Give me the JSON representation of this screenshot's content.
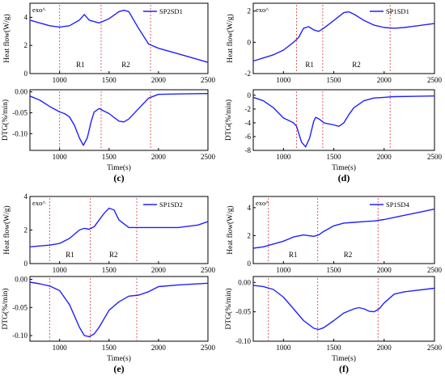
{
  "figure": {
    "time_label": "Time(s)",
    "heat_ylabel": "Heat flow(W/g)",
    "dtg_ylabel": "DTG(%/min)",
    "exo_label": "exo^"
  },
  "chart_data": [
    {
      "panel": "c",
      "label": "(c)",
      "sample": "SP2SD1",
      "type": "line",
      "heat": {
        "ylim": [
          0,
          5
        ],
        "yticks": [
          0,
          2,
          4
        ],
        "x": [
          700,
          800,
          900,
          1000,
          1100,
          1200,
          1250,
          1300,
          1400,
          1500,
          1600,
          1650,
          1700,
          1800,
          1900,
          2000,
          2200,
          2500
        ],
        "y": [
          3.8,
          3.6,
          3.4,
          3.3,
          3.4,
          3.8,
          4.2,
          3.8,
          3.6,
          3.9,
          4.4,
          4.5,
          4.4,
          3.2,
          2.1,
          1.8,
          1.4,
          0.8
        ]
      },
      "dtg": {
        "ylim": [
          -0.14,
          0.005
        ],
        "yticks": [
          0.0,
          -0.05,
          -0.1
        ],
        "x": [
          700,
          800,
          900,
          1000,
          1050,
          1100,
          1150,
          1200,
          1240,
          1280,
          1320,
          1350,
          1400,
          1500,
          1600,
          1650,
          1700,
          1800,
          1900,
          2000,
          2200,
          2500
        ],
        "y": [
          -0.01,
          -0.02,
          -0.035,
          -0.048,
          -0.052,
          -0.06,
          -0.08,
          -0.11,
          -0.128,
          -0.11,
          -0.07,
          -0.048,
          -0.04,
          -0.052,
          -0.07,
          -0.072,
          -0.065,
          -0.04,
          -0.015,
          -0.006,
          -0.005,
          -0.004
        ]
      },
      "markers": [
        1000,
        1420,
        1920
      ],
      "regions": [
        "R1",
        "R2"
      ],
      "xticks": [
        1000,
        1500,
        2000,
        2500
      ]
    },
    {
      "panel": "d",
      "label": "(d)",
      "sample": "SP1SD1",
      "type": "line",
      "heat": {
        "ylim": [
          -2,
          2.5
        ],
        "yticks": [
          -2,
          0,
          2
        ],
        "x": [
          700,
          800,
          900,
          1000,
          1100,
          1150,
          1200,
          1250,
          1300,
          1350,
          1400,
          1500,
          1600,
          1650,
          1700,
          1800,
          1900,
          2000,
          2100,
          2200,
          2500
        ],
        "y": [
          -1.2,
          -1.0,
          -0.8,
          -0.5,
          0.0,
          0.3,
          0.9,
          1.0,
          0.8,
          0.7,
          0.9,
          1.4,
          1.9,
          1.95,
          1.8,
          1.4,
          1.1,
          0.95,
          0.9,
          0.95,
          1.2
        ]
      },
      "dtg": {
        "ylim": [
          -8,
          0.8
        ],
        "yticks": [
          0,
          -2,
          -4,
          -6,
          -8
        ],
        "x": [
          700,
          800,
          900,
          1000,
          1100,
          1130,
          1180,
          1220,
          1260,
          1300,
          1320,
          1360,
          1400,
          1500,
          1550,
          1600,
          1650,
          1700,
          1800,
          1900,
          2000,
          2100,
          2500
        ],
        "y": [
          -0.3,
          -0.8,
          -1.8,
          -3.3,
          -4.0,
          -4.5,
          -6.8,
          -7.5,
          -6.2,
          -3.8,
          -3.2,
          -3.5,
          -4.0,
          -4.3,
          -4.5,
          -4.0,
          -2.8,
          -1.8,
          -0.8,
          -0.4,
          -0.3,
          -0.2,
          -0.1
        ]
      },
      "markers": [
        1130,
        1390,
        2060
      ],
      "regions": [
        "R1",
        "R2"
      ],
      "xticks": [
        1000,
        1500,
        2000,
        2500
      ]
    },
    {
      "panel": "e",
      "label": "(e)",
      "sample": "SP1SD2",
      "type": "line",
      "heat": {
        "ylim": [
          0,
          4
        ],
        "yticks": [
          0,
          2,
          4
        ],
        "x": [
          700,
          800,
          900,
          1000,
          1100,
          1200,
          1250,
          1300,
          1350,
          1400,
          1450,
          1500,
          1550,
          1600,
          1700,
          1800,
          2000,
          2200,
          2400,
          2500
        ],
        "y": [
          1.0,
          1.05,
          1.1,
          1.2,
          1.5,
          2.0,
          2.1,
          2.05,
          2.2,
          2.6,
          3.0,
          3.3,
          3.2,
          2.6,
          2.15,
          2.15,
          2.15,
          2.15,
          2.3,
          2.5
        ]
      },
      "dtg": {
        "ylim": [
          -0.11,
          0.005
        ],
        "yticks": [
          0.0,
          -0.05,
          -0.1
        ],
        "x": [
          700,
          800,
          900,
          1000,
          1100,
          1200,
          1250,
          1300,
          1350,
          1400,
          1450,
          1500,
          1600,
          1700,
          1800,
          1900,
          2000,
          2200,
          2500
        ],
        "y": [
          -0.005,
          -0.008,
          -0.012,
          -0.02,
          -0.045,
          -0.085,
          -0.1,
          -0.102,
          -0.097,
          -0.085,
          -0.07,
          -0.055,
          -0.04,
          -0.03,
          -0.028,
          -0.022,
          -0.013,
          -0.01,
          -0.007
        ]
      },
      "markers": [
        900,
        1310,
        1780
      ],
      "regions": [
        "R1",
        "R2"
      ],
      "xticks": [
        1000,
        1500,
        2000,
        2500
      ]
    },
    {
      "panel": "f",
      "label": "(f)",
      "sample": "SP1SD4",
      "type": "line",
      "heat": {
        "ylim": [
          0,
          4.8
        ],
        "yticks": [
          0,
          2,
          4
        ],
        "x": [
          700,
          800,
          900,
          1000,
          1100,
          1200,
          1300,
          1350,
          1400,
          1500,
          1600,
          1700,
          1800,
          1900,
          2000,
          2100,
          2200,
          2300,
          2400,
          2500
        ],
        "y": [
          1.1,
          1.2,
          1.4,
          1.6,
          1.9,
          2.05,
          1.95,
          2.05,
          2.3,
          2.7,
          2.9,
          2.95,
          3.0,
          3.05,
          3.15,
          3.3,
          3.45,
          3.6,
          3.75,
          3.9
        ]
      },
      "dtg": {
        "ylim": [
          -0.1,
          0.01
        ],
        "yticks": [
          0.0,
          -0.05,
          -0.1
        ],
        "x": [
          700,
          800,
          900,
          1000,
          1100,
          1200,
          1300,
          1350,
          1400,
          1500,
          1600,
          1700,
          1750,
          1800,
          1850,
          1900,
          1950,
          2000,
          2100,
          2200,
          2500
        ],
        "y": [
          -0.005,
          -0.007,
          -0.012,
          -0.025,
          -0.045,
          -0.065,
          -0.078,
          -0.08,
          -0.077,
          -0.065,
          -0.052,
          -0.045,
          -0.043,
          -0.045,
          -0.049,
          -0.05,
          -0.045,
          -0.035,
          -0.02,
          -0.016,
          -0.01
        ]
      },
      "markers": [
        850,
        1340,
        1940
      ],
      "regions": [
        "R1",
        "R2"
      ],
      "xticks": [
        1000,
        1500,
        2000,
        2500
      ]
    }
  ],
  "style": {
    "line_color": "#2020ff",
    "marker_color": "#e06060",
    "axis_color": "#000000"
  }
}
